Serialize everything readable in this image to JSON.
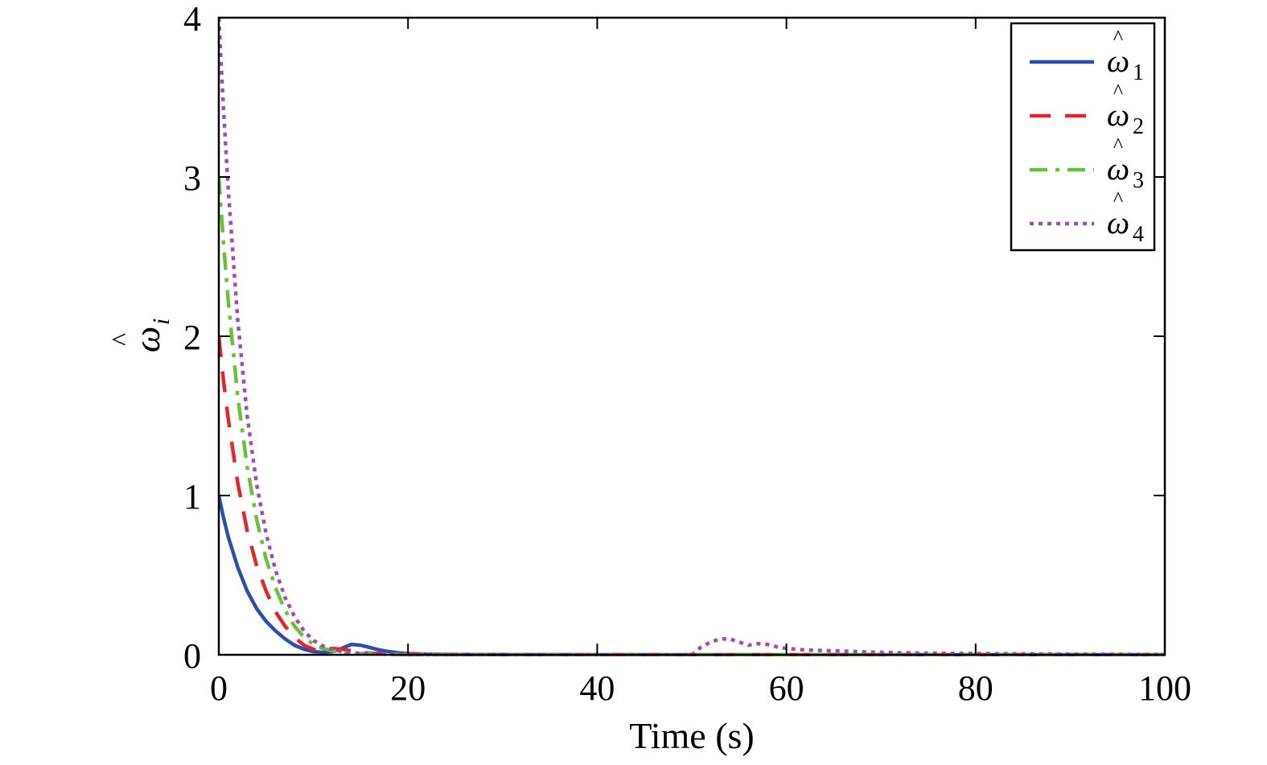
{
  "chart_data": {
    "type": "line",
    "title": "",
    "xlabel": "Time (s)",
    "ylabel_symbol": "ω",
    "ylabel_hat": "^",
    "ylabel_subscript": "i",
    "xlim": [
      0,
      100
    ],
    "ylim": [
      0,
      4
    ],
    "xticks": [
      0,
      20,
      40,
      60,
      80,
      100
    ],
    "yticks": [
      0,
      1,
      2,
      3,
      4
    ],
    "xtick_labels": [
      "0",
      "20",
      "40",
      "60",
      "80",
      "100"
    ],
    "ytick_labels": [
      "0",
      "1",
      "2",
      "3",
      "4"
    ],
    "grid": false,
    "legend_position": "top-right",
    "series": [
      {
        "symbol": "ω",
        "subscript": "1",
        "color": "#2e4fa8",
        "style": "solid",
        "x": [
          0,
          0.5,
          1,
          2,
          3,
          4,
          5,
          6,
          7,
          8,
          9,
          10,
          11,
          12,
          13,
          14,
          15,
          16,
          17,
          18,
          19,
          20,
          22,
          25,
          30,
          40,
          60,
          80,
          100
        ],
        "y": [
          1.0,
          0.86,
          0.74,
          0.55,
          0.4,
          0.29,
          0.21,
          0.15,
          0.1,
          0.06,
          0.035,
          0.02,
          0.015,
          0.02,
          0.04,
          0.065,
          0.06,
          0.045,
          0.03,
          0.02,
          0.012,
          0.008,
          0.004,
          0.002,
          0.001,
          0.0,
          0.0,
          0.0,
          0.0
        ]
      },
      {
        "symbol": "ω",
        "subscript": "2",
        "color": "#e3262b",
        "style": "dashed",
        "x": [
          0,
          0.5,
          1,
          2,
          3,
          4,
          5,
          6,
          7,
          8,
          9,
          10,
          11,
          12,
          13,
          14,
          15,
          16,
          18,
          20,
          25,
          30,
          40,
          60,
          80,
          100
        ],
        "y": [
          2.0,
          1.72,
          1.48,
          1.08,
          0.78,
          0.56,
          0.4,
          0.27,
          0.18,
          0.11,
          0.06,
          0.035,
          0.03,
          0.04,
          0.035,
          0.025,
          0.015,
          0.01,
          0.005,
          0.003,
          0.001,
          0.0,
          0.0,
          0.0,
          0.0,
          0.0
        ]
      },
      {
        "symbol": "ω",
        "subscript": "3",
        "color": "#6bbf3a",
        "style": "dashdot",
        "x": [
          0,
          0.5,
          1,
          2,
          3,
          4,
          5,
          6,
          7,
          8,
          9,
          10,
          11,
          12,
          13,
          14,
          16,
          18,
          20,
          25,
          30,
          40,
          60,
          80,
          100
        ],
        "y": [
          3.0,
          2.58,
          2.22,
          1.62,
          1.18,
          0.85,
          0.6,
          0.42,
          0.28,
          0.18,
          0.11,
          0.065,
          0.04,
          0.025,
          0.015,
          0.01,
          0.006,
          0.004,
          0.002,
          0.001,
          0.0,
          0.0,
          0.0,
          0.0,
          0.0
        ]
      },
      {
        "symbol": "ω",
        "subscript": "4",
        "color": "#9b4fb0",
        "style": "dotted",
        "x": [
          0,
          0.5,
          1,
          2,
          3,
          4,
          5,
          6,
          7,
          8,
          9,
          10,
          11,
          12,
          13,
          14,
          16,
          18,
          20,
          25,
          30,
          40,
          50,
          51,
          52,
          53,
          54,
          55,
          56,
          57,
          58,
          59,
          60,
          62,
          65,
          70,
          75,
          80,
          90,
          100
        ],
        "y": [
          4.0,
          3.42,
          2.92,
          2.1,
          1.5,
          1.07,
          0.76,
          0.53,
          0.36,
          0.24,
          0.15,
          0.09,
          0.055,
          0.035,
          0.02,
          0.012,
          0.007,
          0.004,
          0.002,
          0.001,
          0.0,
          0.0,
          0.0,
          0.05,
          0.08,
          0.1,
          0.1,
          0.08,
          0.06,
          0.07,
          0.065,
          0.05,
          0.04,
          0.03,
          0.025,
          0.015,
          0.01,
          0.008,
          0.004,
          0.002
        ]
      }
    ]
  }
}
